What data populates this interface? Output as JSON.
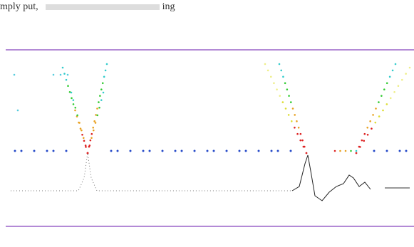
{
  "text": {
    "start": "mply put,",
    "end": "ing"
  }
}
